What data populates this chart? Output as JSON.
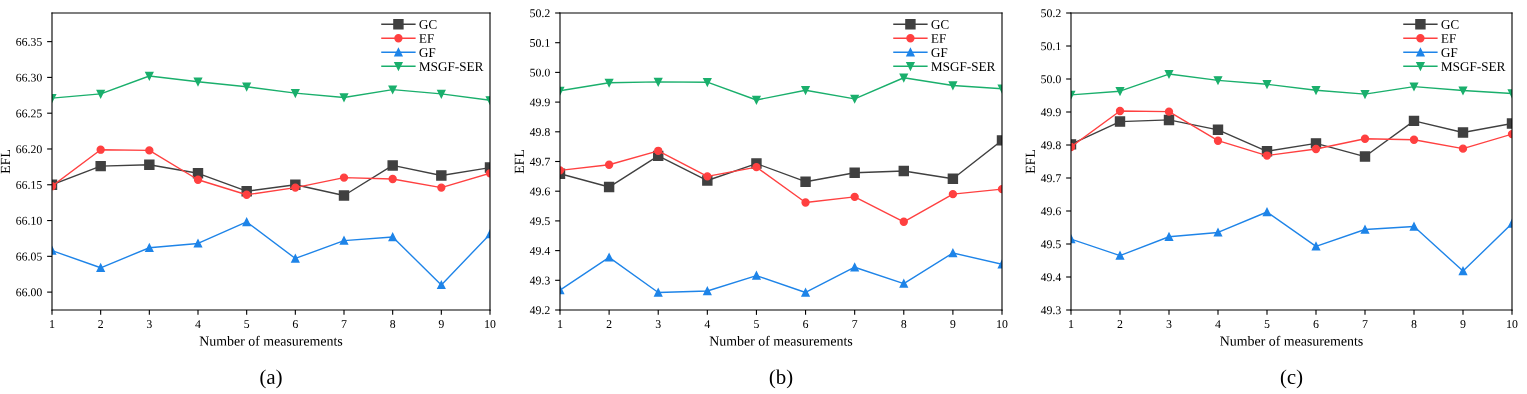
{
  "chart_data": [
    {
      "type": "line",
      "xlabel": "Number of measurements",
      "ylabel": "EFL",
      "annotations": [
        "(a)"
      ],
      "x": [
        1,
        2,
        3,
        4,
        5,
        6,
        7,
        8,
        9,
        10
      ],
      "xlim": [
        1,
        10
      ],
      "xticks": [
        1,
        2,
        3,
        4,
        5,
        6,
        7,
        8,
        9,
        10
      ],
      "ylim": [
        65.975,
        66.39
      ],
      "yticks": [
        {
          "value": 66.0,
          "label": "66.00"
        },
        {
          "value": 66.05,
          "label": "66.05"
        },
        {
          "value": 66.1,
          "label": "66.10"
        },
        {
          "value": 66.15,
          "label": "66.15"
        },
        {
          "value": 66.2,
          "label": "66.20"
        },
        {
          "value": 66.25,
          "label": "66.25"
        },
        {
          "value": 66.3,
          "label": "66.30"
        },
        {
          "value": 66.35,
          "label": "66.35"
        }
      ],
      "legend": "top right",
      "grid": false,
      "line_style": "solid",
      "series": [
        {
          "name": "GC",
          "color": "#404040",
          "marker": "square",
          "values": [
            66.15,
            66.176,
            66.178,
            66.166,
            66.141,
            66.15,
            66.135,
            66.177,
            66.163,
            66.174
          ]
        },
        {
          "name": "EF",
          "color": "#ff4040",
          "marker": "circle",
          "values": [
            66.148,
            66.199,
            66.198,
            66.157,
            66.136,
            66.146,
            66.16,
            66.158,
            66.146,
            66.166
          ]
        },
        {
          "name": "GF",
          "color": "#1e84e8",
          "marker": "triangle",
          "values": [
            66.058,
            66.034,
            66.062,
            66.068,
            66.098,
            66.047,
            66.072,
            66.077,
            66.01,
            66.081
          ]
        },
        {
          "name": "MSGF-SER",
          "color": "#1aaf6c",
          "marker": "triangle_down",
          "values": [
            66.271,
            66.277,
            66.302,
            66.294,
            66.287,
            66.278,
            66.272,
            66.283,
            66.277,
            66.268
          ]
        }
      ]
    },
    {
      "type": "line",
      "xlabel": "Number of measurements",
      "ylabel": "EFL",
      "annotations": [
        "(b)"
      ],
      "x": [
        1,
        2,
        3,
        4,
        5,
        6,
        7,
        8,
        9,
        10
      ],
      "xlim": [
        1,
        10
      ],
      "xticks": [
        1,
        2,
        3,
        4,
        5,
        6,
        7,
        8,
        9,
        10
      ],
      "ylim": [
        49.2,
        50.2
      ],
      "yticks": [
        49.2,
        49.3,
        49.4,
        49.5,
        49.6,
        49.7,
        49.8,
        49.9,
        {
          "value": 50.0,
          "label": "50.0"
        },
        50.1,
        50.2
      ],
      "legend": "top right",
      "grid": false,
      "line_style": "solid",
      "series": [
        {
          "name": "GC",
          "color": "#404040",
          "marker": "square",
          "values": [
            49.659,
            49.614,
            49.719,
            49.636,
            49.693,
            49.632,
            49.662,
            49.668,
            49.642,
            49.771
          ]
        },
        {
          "name": "EF",
          "color": "#ff4040",
          "marker": "circle",
          "values": [
            49.67,
            49.689,
            49.736,
            49.65,
            49.681,
            49.562,
            49.581,
            49.497,
            49.59,
            49.607
          ]
        },
        {
          "name": "GF",
          "color": "#1e84e8",
          "marker": "triangle",
          "values": [
            49.267,
            49.377,
            49.259,
            49.264,
            49.316,
            49.259,
            49.344,
            49.289,
            49.392,
            49.354
          ]
        },
        {
          "name": "MSGF-SER",
          "color": "#1aaf6c",
          "marker": "triangle_down",
          "values": [
            49.938,
            49.965,
            49.968,
            49.967,
            49.907,
            49.94,
            49.911,
            49.982,
            49.956,
            49.945
          ]
        }
      ]
    },
    {
      "type": "line",
      "xlabel": "Number of measurements",
      "ylabel": "EFL",
      "annotations": [
        "(c)"
      ],
      "x": [
        1,
        2,
        3,
        4,
        5,
        6,
        7,
        8,
        9,
        10
      ],
      "xlim": [
        1,
        10
      ],
      "xticks": [
        1,
        2,
        3,
        4,
        5,
        6,
        7,
        8,
        9,
        10
      ],
      "ylim": [
        49.3,
        50.2
      ],
      "yticks": [
        49.3,
        49.4,
        49.5,
        49.6,
        49.7,
        49.8,
        49.9,
        {
          "value": 50.0,
          "label": "50.0"
        },
        50.1,
        50.2
      ],
      "legend": "top right",
      "grid": false,
      "line_style": "solid",
      "series": [
        {
          "name": "GC",
          "color": "#404040",
          "marker": "square",
          "values": [
            49.802,
            49.871,
            49.876,
            49.846,
            49.781,
            49.805,
            49.765,
            49.873,
            49.838,
            49.865
          ]
        },
        {
          "name": "EF",
          "color": "#ff4040",
          "marker": "circle",
          "values": [
            49.794,
            49.903,
            49.901,
            49.813,
            49.768,
            49.788,
            49.819,
            49.816,
            49.789,
            49.833
          ]
        },
        {
          "name": "GF",
          "color": "#1e84e8",
          "marker": "triangle",
          "values": [
            49.515,
            49.465,
            49.522,
            49.535,
            49.597,
            49.493,
            49.544,
            49.553,
            49.418,
            49.562
          ]
        },
        {
          "name": "MSGF-SER",
          "color": "#1aaf6c",
          "marker": "triangle_down",
          "values": [
            49.952,
            49.963,
            50.015,
            49.996,
            49.984,
            49.966,
            49.954,
            49.977,
            49.965,
            49.956
          ]
        }
      ]
    }
  ]
}
